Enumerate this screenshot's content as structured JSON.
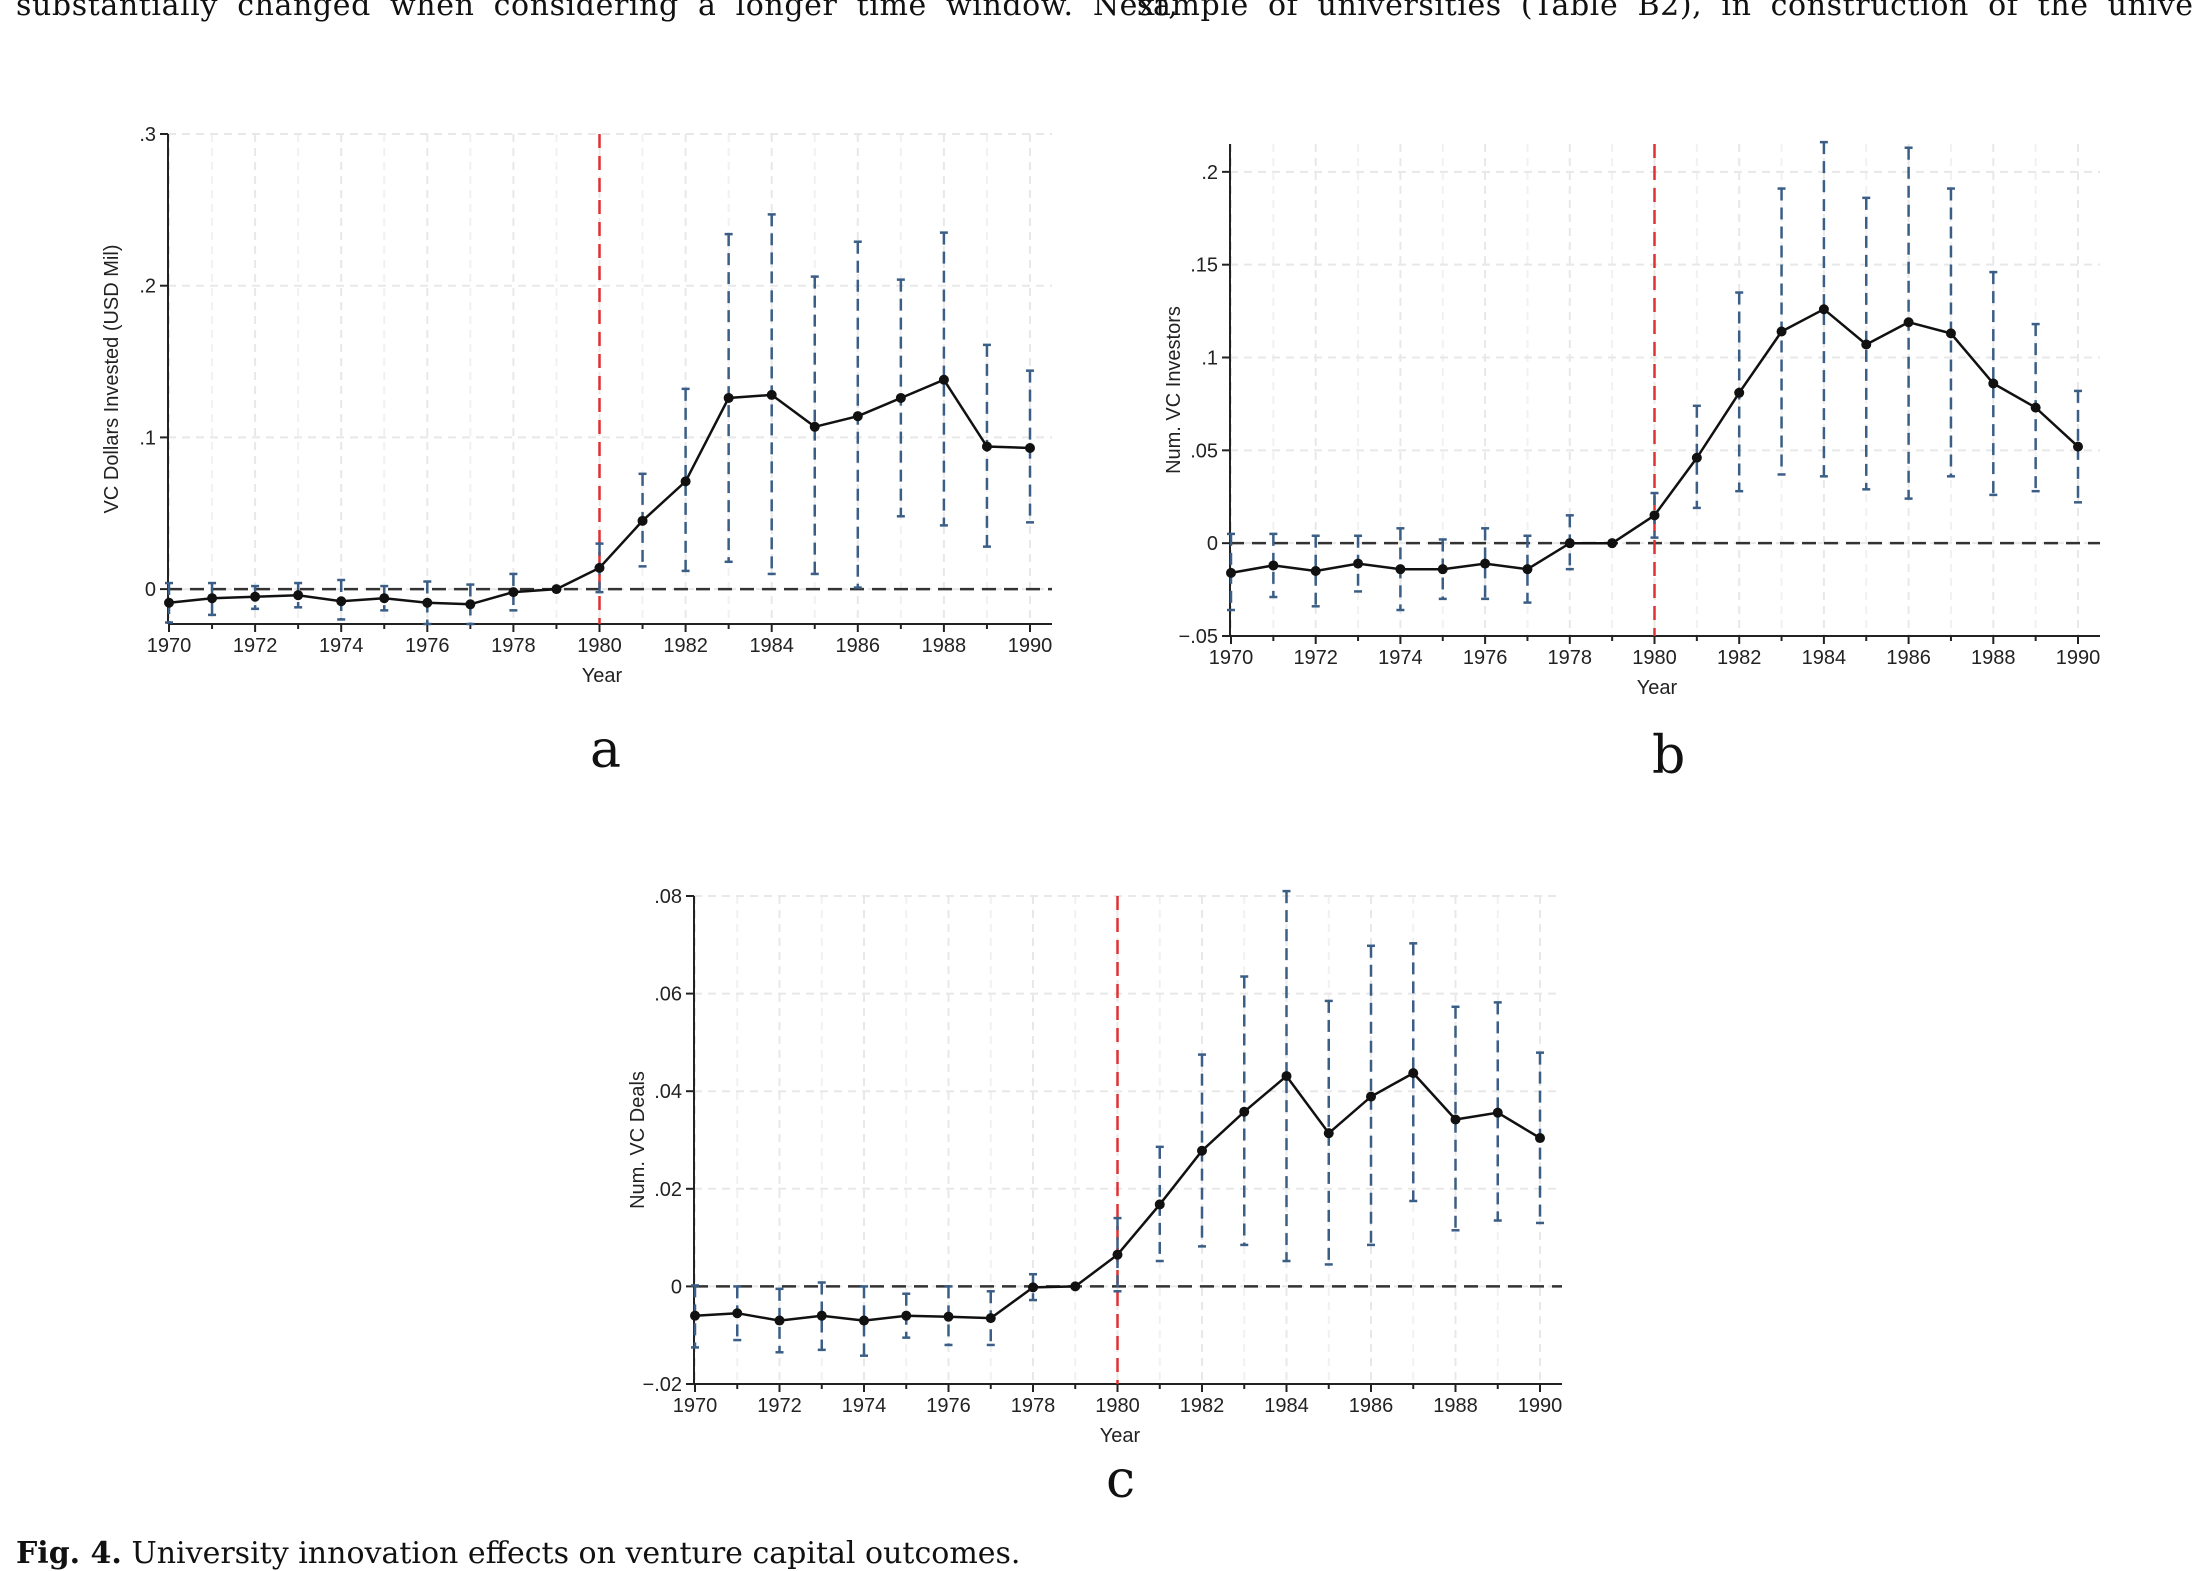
{
  "page_text": {
    "left_line": "substantially changed when considering a longer time window. Next,",
    "right_line": "sample of universities (Table B2), in construction of the unive"
  },
  "caption": {
    "label": "Fig. 4.",
    "text": "University innovation effects on venture capital outcomes."
  },
  "colors": {
    "line": "#111111",
    "ci": "#3b5e86",
    "vline": "#e03131",
    "zero": "#333333",
    "grid": "#e8e8e8"
  },
  "chart_data": [
    {
      "type": "line",
      "panel_label": "a",
      "xlabel": "Year",
      "ylabel": "VC Dollars Invested (USD Mil)",
      "xlim": [
        1970,
        1990
      ],
      "ylim": [
        -0.023,
        0.3
      ],
      "yticks": [
        0,
        0.1,
        0.2,
        0.3
      ],
      "ytick_labels": [
        "0",
        ".1",
        ".2",
        ".3"
      ],
      "xticks": [
        1970,
        1972,
        1974,
        1976,
        1978,
        1980,
        1982,
        1984,
        1986,
        1988,
        1990
      ],
      "reference_vline": 1980,
      "reference_hline": 0,
      "x": [
        1970,
        1971,
        1972,
        1973,
        1974,
        1975,
        1976,
        1977,
        1978,
        1979,
        1980,
        1981,
        1982,
        1983,
        1984,
        1985,
        1986,
        1987,
        1988,
        1989,
        1990
      ],
      "y": [
        -0.009,
        -0.006,
        -0.005,
        -0.004,
        -0.008,
        -0.006,
        -0.009,
        -0.01,
        -0.002,
        0.0,
        0.014,
        0.045,
        0.071,
        0.126,
        0.128,
        0.107,
        0.114,
        0.126,
        0.138,
        0.094,
        0.093
      ],
      "ci_low": [
        -0.022,
        -0.017,
        -0.013,
        -0.012,
        -0.02,
        -0.014,
        -0.023,
        -0.023,
        -0.014,
        null,
        -0.002,
        0.015,
        0.012,
        0.018,
        0.01,
        0.01,
        0.001,
        0.048,
        0.042,
        0.028,
        0.044
      ],
      "ci_high": [
        0.004,
        0.004,
        0.002,
        0.004,
        0.006,
        0.002,
        0.005,
        0.003,
        0.01,
        null,
        0.03,
        0.076,
        0.132,
        0.234,
        0.247,
        0.206,
        0.229,
        0.204,
        0.235,
        0.161,
        0.144
      ]
    },
    {
      "type": "line",
      "panel_label": "b",
      "xlabel": "Year",
      "ylabel": "Num. VC Investors",
      "xlim": [
        1970,
        1990
      ],
      "ylim": [
        -0.05,
        0.215
      ],
      "yticks": [
        -0.05,
        0,
        0.05,
        0.1,
        0.15,
        0.2
      ],
      "ytick_labels": [
        "−.05",
        "0",
        ".05",
        ".1",
        ".15",
        ".2"
      ],
      "xticks": [
        1970,
        1972,
        1974,
        1976,
        1978,
        1980,
        1982,
        1984,
        1986,
        1988,
        1990
      ],
      "reference_vline": 1980,
      "reference_hline": 0,
      "x": [
        1970,
        1971,
        1972,
        1973,
        1974,
        1975,
        1976,
        1977,
        1978,
        1979,
        1980,
        1981,
        1982,
        1983,
        1984,
        1985,
        1986,
        1987,
        1988,
        1989,
        1990
      ],
      "y": [
        -0.016,
        -0.012,
        -0.015,
        -0.011,
        -0.014,
        -0.014,
        -0.011,
        -0.014,
        0.0,
        0.0,
        0.015,
        0.046,
        0.081,
        0.114,
        0.126,
        0.107,
        0.119,
        0.113,
        0.086,
        0.073,
        0.052
      ],
      "ci_low": [
        -0.036,
        -0.029,
        -0.034,
        -0.026,
        -0.036,
        -0.03,
        -0.03,
        -0.032,
        -0.014,
        null,
        0.003,
        0.019,
        0.028,
        0.037,
        0.036,
        0.029,
        0.024,
        0.036,
        0.026,
        0.028,
        0.022
      ],
      "ci_high": [
        0.005,
        0.005,
        0.004,
        0.004,
        0.008,
        0.002,
        0.008,
        0.004,
        0.015,
        null,
        0.027,
        0.074,
        0.135,
        0.191,
        0.216,
        0.186,
        0.213,
        0.191,
        0.146,
        0.118,
        0.082
      ]
    },
    {
      "type": "line",
      "panel_label": "c",
      "xlabel": "Year",
      "ylabel": "Num. VC Deals",
      "xlim": [
        1970,
        1990
      ],
      "ylim": [
        -0.02,
        0.08
      ],
      "yticks": [
        -0.02,
        0,
        0.02,
        0.04,
        0.06,
        0.08
      ],
      "ytick_labels": [
        "−.02",
        "0",
        ".02",
        ".04",
        ".06",
        ".08"
      ],
      "xticks": [
        1970,
        1972,
        1974,
        1976,
        1978,
        1980,
        1982,
        1984,
        1986,
        1988,
        1990
      ],
      "reference_vline": 1980,
      "reference_hline": 0,
      "x": [
        1970,
        1971,
        1972,
        1973,
        1974,
        1975,
        1976,
        1977,
        1978,
        1979,
        1980,
        1981,
        1982,
        1983,
        1984,
        1985,
        1986,
        1987,
        1988,
        1989,
        1990
      ],
      "y": [
        -0.006,
        -0.0055,
        -0.007,
        -0.006,
        -0.007,
        -0.006,
        -0.0062,
        -0.0065,
        -0.0002,
        0.0,
        0.0065,
        0.0168,
        0.0278,
        0.0358,
        0.0431,
        0.0314,
        0.0389,
        0.0437,
        0.0342,
        0.0356,
        0.0304
      ],
      "ci_low": [
        -0.0125,
        -0.011,
        -0.0135,
        -0.013,
        -0.0142,
        -0.0105,
        -0.012,
        -0.012,
        -0.0028,
        null,
        -0.001,
        0.0052,
        0.0082,
        0.0085,
        0.0052,
        0.0045,
        0.0085,
        0.0175,
        0.0115,
        0.0135,
        0.013
      ],
      "ci_high": [
        0.0002,
        0.0,
        -0.0005,
        0.0008,
        0.0,
        -0.0015,
        0.0,
        -0.001,
        0.0025,
        null,
        0.014,
        0.0286,
        0.0475,
        0.0635,
        0.081,
        0.0585,
        0.0698,
        0.0703,
        0.0573,
        0.0582,
        0.0479
      ]
    }
  ]
}
